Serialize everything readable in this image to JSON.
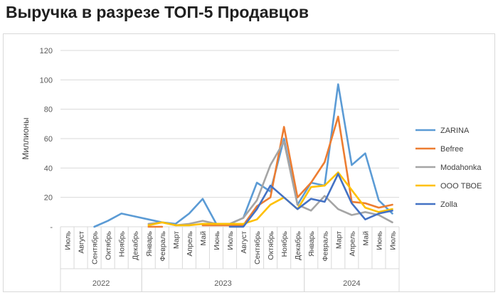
{
  "title": "Выручка в разрезе ТОП-5 Продавцов",
  "chart_data": {
    "type": "line",
    "ylabel": "Миллионы",
    "xlabel": "",
    "ylim": [
      0,
      120
    ],
    "y_ticks": [
      "-",
      "20",
      "40",
      "60",
      "80",
      "100",
      "120"
    ],
    "y_tick_values": [
      0,
      20,
      40,
      60,
      80,
      100,
      120
    ],
    "x": [
      "2022-07",
      "2022-08",
      "2022-09",
      "2022-10",
      "2022-11",
      "2022-12",
      "2023-01",
      "2023-02",
      "2023-03",
      "2023-04",
      "2023-05",
      "2023-06",
      "2023-07",
      "2023-08",
      "2023-09",
      "2023-10",
      "2023-11",
      "2023-12",
      "2024-01",
      "2024-02",
      "2024-03",
      "2024-04",
      "2024-05",
      "2024-06",
      "2024-07"
    ],
    "categories": [
      "Июль",
      "Август",
      "Сентябрь",
      "Октябрь",
      "Ноябрь",
      "Декабрь",
      "Январь",
      "Февраль",
      "Март",
      "Апрель",
      "Май",
      "Июнь",
      "Июль",
      "Август",
      "Сентябрь",
      "Октябрь",
      "Ноябрь",
      "Декабрь",
      "Январь",
      "Февраль",
      "Март",
      "Апрель",
      "Май",
      "Июнь",
      "Июль"
    ],
    "year_groups": [
      {
        "label": "2022",
        "start": 0,
        "end": 5
      },
      {
        "label": "2023",
        "start": 6,
        "end": 17
      },
      {
        "label": "2024",
        "start": 18,
        "end": 24
      }
    ],
    "grid": true,
    "legend_position": "right",
    "series": [
      {
        "name": "ZARINA",
        "color": "#5B9BD5",
        "values": [
          null,
          null,
          0,
          4,
          9,
          7,
          5,
          3,
          2,
          9,
          19,
          2,
          2,
          6,
          30,
          24,
          60,
          15,
          30,
          28,
          97,
          42,
          50,
          18,
          9
        ]
      },
      {
        "name": "Befree",
        "color": "#ED7D31",
        "values": [
          null,
          null,
          null,
          null,
          null,
          null,
          0,
          0,
          null,
          null,
          1,
          1,
          1,
          1,
          14,
          20,
          68,
          20,
          30,
          44,
          75,
          17,
          16,
          13,
          15
        ]
      },
      {
        "name": "Modahonka",
        "color": "#A5A5A5",
        "values": [
          null,
          null,
          null,
          null,
          null,
          null,
          2,
          3,
          1,
          2,
          4,
          2,
          2,
          6,
          18,
          42,
          58,
          15,
          11,
          21,
          12,
          8,
          10,
          8,
          3
        ]
      },
      {
        "name": "ООО ТВОЕ",
        "color": "#FFC000",
        "values": [
          null,
          null,
          null,
          null,
          null,
          null,
          1,
          3,
          1,
          1,
          2,
          2,
          2,
          2,
          5,
          15,
          20,
          12,
          27,
          28,
          37,
          25,
          13,
          10,
          12
        ]
      },
      {
        "name": "Zolla",
        "color": "#4472C4",
        "values": [
          null,
          null,
          null,
          null,
          null,
          null,
          null,
          null,
          null,
          null,
          null,
          null,
          0,
          0,
          12,
          28,
          20,
          12,
          19,
          17,
          36,
          16,
          5,
          9,
          11
        ]
      }
    ]
  }
}
